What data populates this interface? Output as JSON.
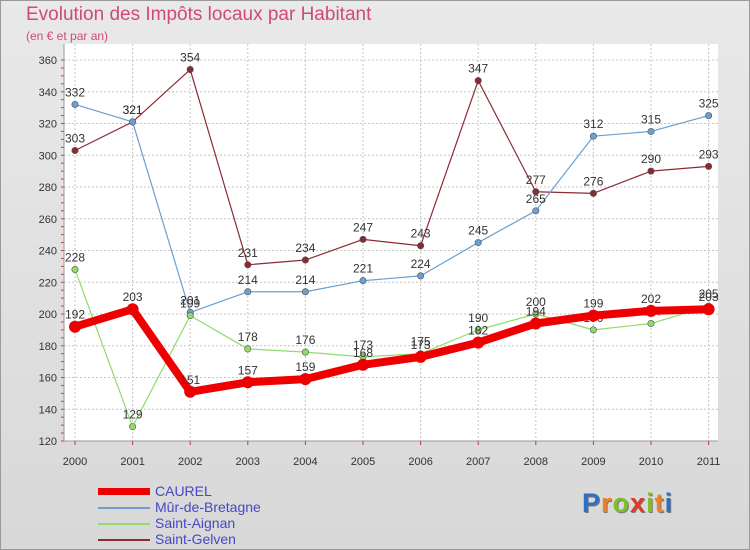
{
  "chart_data": {
    "type": "line",
    "title": "Evolution des Impôts locaux par Habitant",
    "subtitle": "(en € et par an)",
    "categories": [
      "2000",
      "2001",
      "2002",
      "2003",
      "2004",
      "2005",
      "2006",
      "2007",
      "2008",
      "2009",
      "2010",
      "2011"
    ],
    "ylim": [
      120,
      360
    ],
    "yticks": [
      120,
      140,
      160,
      180,
      200,
      220,
      240,
      260,
      280,
      300,
      320,
      340,
      360
    ],
    "grid": true,
    "legend_position": "bottom-left",
    "series": [
      {
        "name": "Saint-Gelven",
        "color": "#8b2a35",
        "values": [
          303,
          321,
          354,
          231,
          234,
          247,
          243,
          347,
          277,
          276,
          290,
          293
        ]
      },
      {
        "name": "Mûr-de-Bretagne",
        "color": "#6a9fcf",
        "values": [
          332,
          321,
          201,
          214,
          214,
          221,
          224,
          245,
          265,
          312,
          315,
          325
        ]
      },
      {
        "name": "Saint-Aignan",
        "color": "#8fdc6a",
        "values": [
          228,
          129,
          199,
          178,
          176,
          173,
          175,
          190,
          200,
          190,
          194,
          205
        ]
      },
      {
        "name": "CAUREL",
        "color": "#ee0000",
        "values": [
          192,
          203,
          151,
          157,
          159,
          168,
          173,
          182,
          194,
          199,
          202,
          203
        ]
      }
    ]
  },
  "legend": [
    {
      "name": "CAUREL",
      "color": "#ee0000"
    },
    {
      "name": "Mûr-de-Bretagne",
      "color": "#6a9fcf"
    },
    {
      "name": "Saint-Aignan",
      "color": "#8fdc6a"
    },
    {
      "name": "Saint-Gelven",
      "color": "#8b2a35"
    }
  ],
  "logo": {
    "letters": [
      "P",
      "r",
      "o",
      "x",
      "i",
      "t",
      "i"
    ],
    "colors": [
      "#2e6fc0",
      "#f08020",
      "#7fbf2a",
      "#e23a2a",
      "#7fbf2a",
      "#f08020",
      "#2e6fc0"
    ]
  }
}
